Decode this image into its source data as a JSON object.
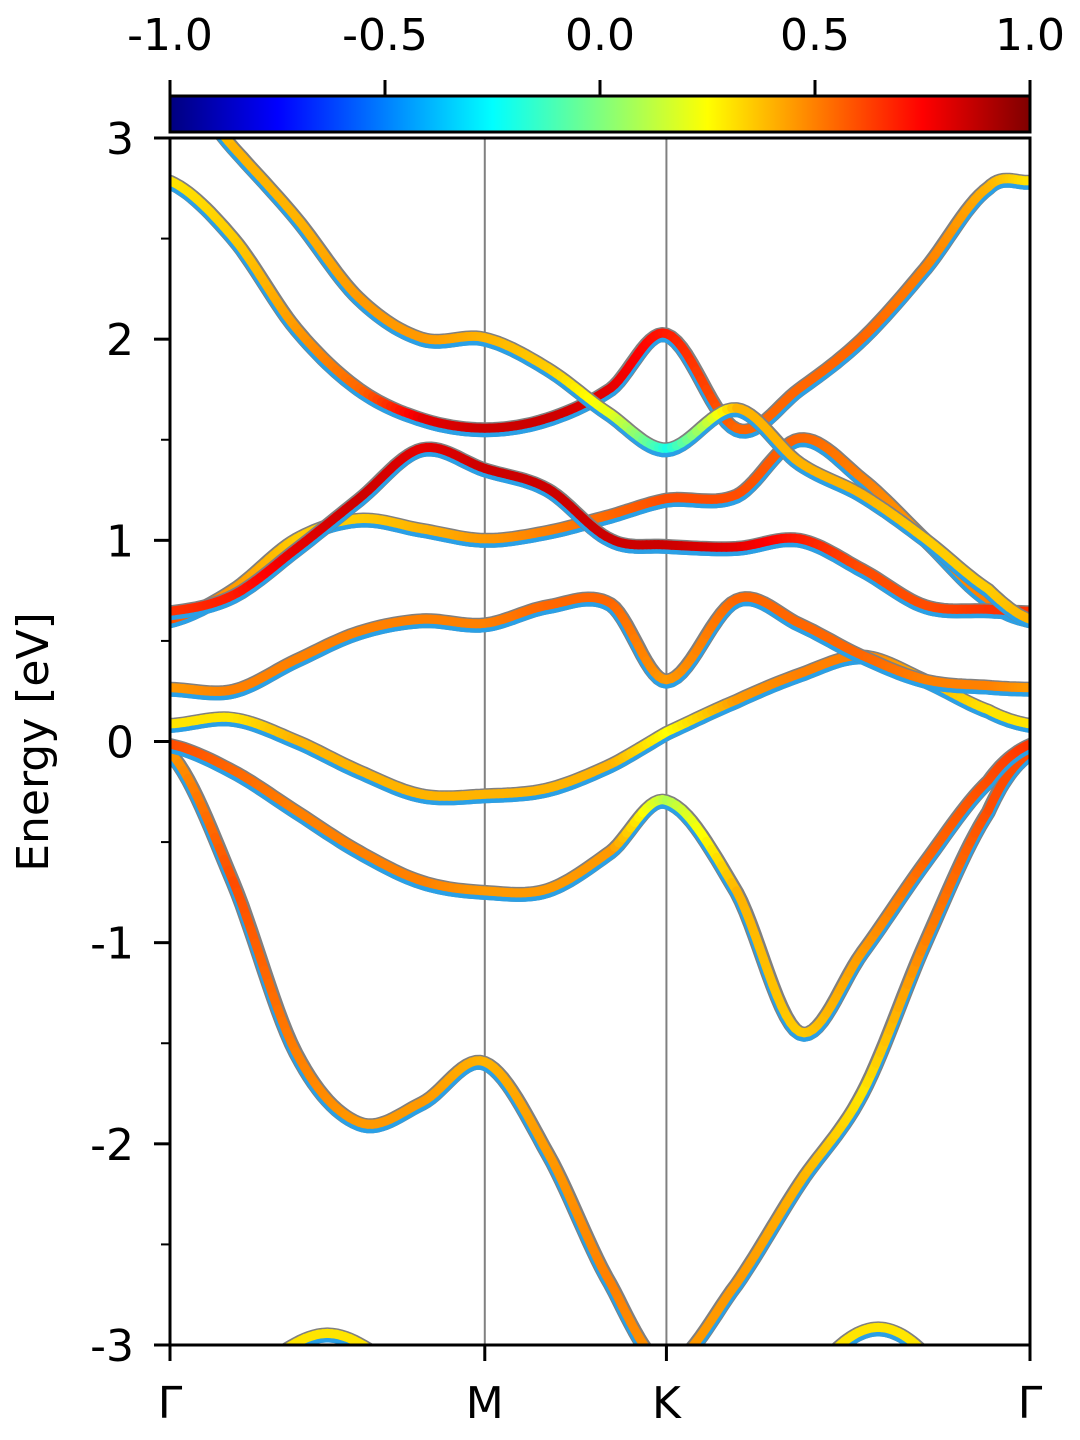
{
  "chart_data": {
    "type": "line",
    "title": "",
    "xlabel": "",
    "ylabel": "Energy [eV]",
    "ylim": [
      -3,
      3
    ],
    "yticks": [
      {
        "value": 3,
        "label": "3"
      },
      {
        "value": 2,
        "label": "2"
      },
      {
        "value": 1,
        "label": "1"
      },
      {
        "value": 0,
        "label": "0"
      },
      {
        "value": -1,
        "label": "-1"
      },
      {
        "value": -2,
        "label": "-2"
      },
      {
        "value": -3,
        "label": "-3"
      }
    ],
    "yminor_ticks": [
      2.5,
      1.5,
      0.5,
      -0.5,
      -1.5,
      -2.5
    ],
    "x_kpoints": [
      {
        "pos": 0.0,
        "label": "Γ"
      },
      {
        "pos": 1.0,
        "label": "M"
      },
      {
        "pos": 1.577,
        "label": "K"
      },
      {
        "pos": 2.732,
        "label": "Γ"
      }
    ],
    "xlim": [
      0,
      2.732
    ],
    "colorbar": {
      "range": [
        -1.0,
        1.0
      ],
      "colormap": "jet",
      "ticks": [
        {
          "value": -1.0,
          "label": "-1.0"
        },
        {
          "value": -0.5,
          "label": "-0.5"
        },
        {
          "value": 0.0,
          "label": "0.0"
        },
        {
          "value": 0.5,
          "label": "0.5"
        },
        {
          "value": 1.0,
          "label": "1.0"
        }
      ],
      "placement": "top"
    },
    "vertical_lines_at_kpoints": true,
    "outline_color": "#808080",
    "series": [
      {
        "x": [
          0,
          0.2,
          0.4,
          0.6,
          0.8,
          1.0,
          1.2,
          1.4,
          1.577,
          1.8,
          2.0,
          2.2,
          2.4,
          2.6,
          2.732
        ],
        "y": [
          -0.06,
          -0.7,
          -1.55,
          -1.9,
          -1.8,
          -1.6,
          -2.05,
          -2.7,
          -3.1,
          -2.7,
          -2.2,
          -1.75,
          -1.0,
          -0.35,
          -0.06
        ],
        "projection": [
          0.45,
          0.6,
          0.5,
          0.45,
          0.45,
          0.4,
          0.45,
          0.5,
          0.45,
          0.45,
          0.4,
          0.3,
          0.5,
          0.6,
          0.6
        ]
      },
      {
        "x": [
          0,
          0.2,
          0.4,
          0.6,
          0.8,
          1.0,
          1.2,
          1.4,
          1.577,
          1.8,
          2.0,
          2.2,
          2.4,
          2.6,
          2.732
        ],
        "y": [
          -0.02,
          -0.15,
          -0.35,
          -0.55,
          -0.7,
          -0.75,
          -0.74,
          -0.55,
          -0.3,
          -0.75,
          -1.45,
          -1.05,
          -0.6,
          -0.2,
          -0.02
        ],
        "projection": [
          0.6,
          0.55,
          0.5,
          0.5,
          0.5,
          0.45,
          0.45,
          0.45,
          0.1,
          0.4,
          0.35,
          0.45,
          0.55,
          0.6,
          0.65
        ]
      },
      {
        "x": [
          0,
          0.2,
          0.4,
          0.6,
          0.8,
          1.0,
          1.2,
          1.4,
          1.577,
          1.8,
          2.0,
          2.2,
          2.4,
          2.6,
          2.732
        ],
        "y": [
          0.08,
          0.11,
          0.0,
          -0.15,
          -0.27,
          -0.27,
          -0.24,
          -0.12,
          0.04,
          0.2,
          0.33,
          0.42,
          0.3,
          0.15,
          0.08
        ],
        "projection": [
          0.3,
          0.3,
          0.4,
          0.4,
          0.4,
          0.4,
          0.4,
          0.4,
          0.25,
          0.45,
          0.5,
          0.5,
          0.4,
          0.3,
          0.3
        ]
      },
      {
        "x": [
          0,
          0.2,
          0.4,
          0.6,
          0.8,
          1.0,
          1.2,
          1.4,
          1.577,
          1.8,
          2.0,
          2.2,
          2.4,
          2.6,
          2.732
        ],
        "y": [
          0.26,
          0.25,
          0.4,
          0.54,
          0.6,
          0.58,
          0.67,
          0.68,
          0.3,
          0.7,
          0.58,
          0.42,
          0.3,
          0.27,
          0.26
        ],
        "projection": [
          0.45,
          0.5,
          0.5,
          0.5,
          0.5,
          0.5,
          0.55,
          0.55,
          0.45,
          0.55,
          0.55,
          0.55,
          0.5,
          0.5,
          0.45
        ]
      },
      {
        "x": [
          0,
          0.2,
          0.4,
          0.6,
          0.8,
          1.0,
          1.2,
          1.4,
          1.577,
          1.8,
          2.0,
          2.2,
          2.4,
          2.6,
          2.732
        ],
        "y": [
          0.6,
          0.75,
          1.0,
          1.1,
          1.05,
          1.0,
          1.04,
          1.12,
          1.2,
          1.22,
          1.5,
          1.3,
          1.0,
          0.7,
          0.6
        ],
        "projection": [
          0.6,
          0.45,
          0.35,
          0.35,
          0.4,
          0.45,
          0.5,
          0.55,
          0.6,
          0.6,
          0.55,
          0.5,
          0.45,
          0.5,
          0.55
        ]
      },
      {
        "x": [
          0,
          0.2,
          0.4,
          0.6,
          0.8,
          1.0,
          1.2,
          1.4,
          1.577,
          1.8,
          2.0,
          2.2,
          2.4,
          2.6,
          2.732
        ],
        "y": [
          0.64,
          0.72,
          0.95,
          1.2,
          1.45,
          1.35,
          1.25,
          1.0,
          0.97,
          0.96,
          1.0,
          0.85,
          0.67,
          0.65,
          0.64
        ],
        "projection": [
          0.65,
          0.7,
          0.8,
          0.85,
          0.8,
          0.85,
          0.85,
          0.85,
          0.85,
          0.8,
          0.7,
          0.6,
          0.6,
          0.65,
          0.65
        ]
      },
      {
        "x": [
          0,
          0.2,
          0.4,
          0.6,
          0.8,
          1.0,
          1.2,
          1.4,
          1.577,
          1.8,
          2.0,
          2.2,
          2.4,
          2.6,
          2.732
        ],
        "y": [
          2.78,
          2.5,
          2.05,
          1.75,
          1.6,
          1.55,
          1.6,
          1.75,
          2.02,
          1.55,
          1.75,
          2.0,
          2.35,
          2.75,
          2.78
        ],
        "projection": [
          0.3,
          0.35,
          0.45,
          0.55,
          0.8,
          0.85,
          0.85,
          0.8,
          0.7,
          0.55,
          0.55,
          0.55,
          0.5,
          0.4,
          0.3
        ]
      },
      {
        "x": [
          0,
          0.2,
          0.4,
          0.6,
          0.8,
          1.0,
          1.2,
          1.4,
          1.577,
          1.8,
          2.0,
          2.2,
          2.4,
          2.6,
          2.732
        ],
        "y": [
          3.3,
          2.95,
          2.6,
          2.2,
          2.0,
          2.0,
          1.85,
          1.62,
          1.45,
          1.65,
          1.38,
          1.22,
          1.0,
          0.75,
          0.6
        ],
        "projection": [
          0.2,
          0.4,
          0.4,
          0.45,
          0.45,
          0.4,
          0.35,
          0.2,
          -0.2,
          0.4,
          0.4,
          0.4,
          0.35,
          0.35,
          0.4
        ]
      },
      {
        "x": [
          0,
          0.3,
          0.5,
          0.7,
          0.9
        ],
        "y": [
          -3.4,
          -3.1,
          -2.95,
          -3.1,
          -3.4
        ],
        "projection": [
          0.35,
          0.3,
          0.3,
          0.3,
          0.35
        ]
      },
      {
        "x": [
          1.95,
          2.1,
          2.25,
          2.4,
          2.55
        ],
        "y": [
          -3.4,
          -3.05,
          -2.92,
          -3.05,
          -3.4
        ],
        "projection": [
          0.35,
          0.3,
          0.3,
          0.3,
          0.35
        ]
      }
    ]
  }
}
